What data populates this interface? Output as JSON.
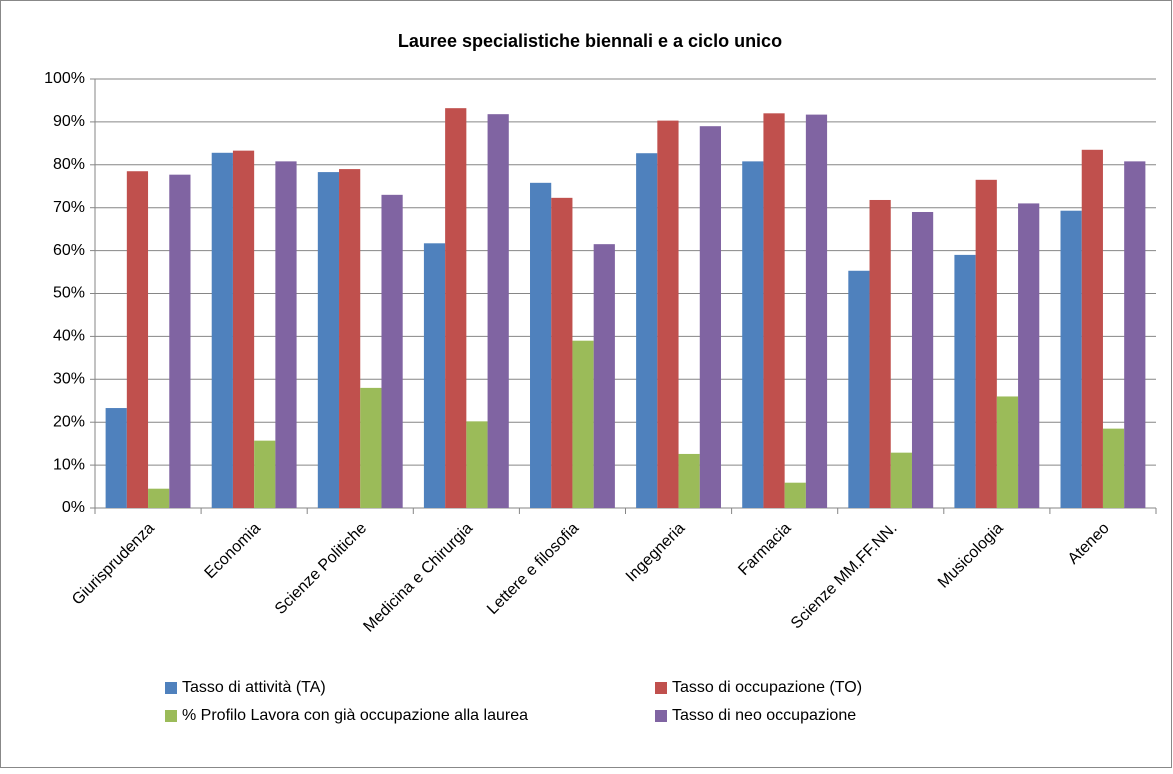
{
  "chart_data": {
    "type": "bar",
    "title": "Lauree specialistiche biennali e a ciclo unico",
    "categories": [
      "Giurisprudenza",
      "Economia",
      "Scienze Politiche",
      "Medicina e Chirurgia",
      "Lettere e filosofia",
      "Ingegneria",
      "Farmacia",
      "Scienze MM.FF.NN.",
      "Musicologia",
      "Ateneo"
    ],
    "series": [
      {
        "name": "Tasso di attività (TA)",
        "color": "#4f81bd",
        "values": [
          23.3,
          82.8,
          78.3,
          61.7,
          75.8,
          82.7,
          80.8,
          55.3,
          59.0,
          69.3
        ]
      },
      {
        "name": "Tasso di occupazione (TO)",
        "color": "#c0504d",
        "values": [
          78.5,
          83.3,
          79.0,
          93.2,
          72.3,
          90.3,
          92.0,
          71.8,
          76.5,
          83.5
        ]
      },
      {
        "name": "% Profilo Lavora con già occupazione alla laurea",
        "color": "#9bbb59",
        "values": [
          4.5,
          15.7,
          28.0,
          20.2,
          39.0,
          12.6,
          5.9,
          12.9,
          26.0,
          18.5
        ]
      },
      {
        "name": "Tasso di neo occupazione",
        "color": "#8064a2",
        "values": [
          77.7,
          80.8,
          73.0,
          91.8,
          61.5,
          89.0,
          91.7,
          69.0,
          71.0,
          80.8
        ]
      }
    ],
    "ylim": [
      0,
      100
    ],
    "yticks": [
      {
        "value": 0,
        "label": "0%"
      },
      {
        "value": 10,
        "label": "10%"
      },
      {
        "value": 20,
        "label": "20%"
      },
      {
        "value": 30,
        "label": "30%"
      },
      {
        "value": 40,
        "label": "40%"
      },
      {
        "value": 50,
        "label": "50%"
      },
      {
        "value": 60,
        "label": "60%"
      },
      {
        "value": 70,
        "label": "70%"
      },
      {
        "value": 80,
        "label": "80%"
      },
      {
        "value": 90,
        "label": "90%"
      },
      {
        "value": 100,
        "label": "100%"
      }
    ],
    "grid": true,
    "legend": "bottom"
  }
}
